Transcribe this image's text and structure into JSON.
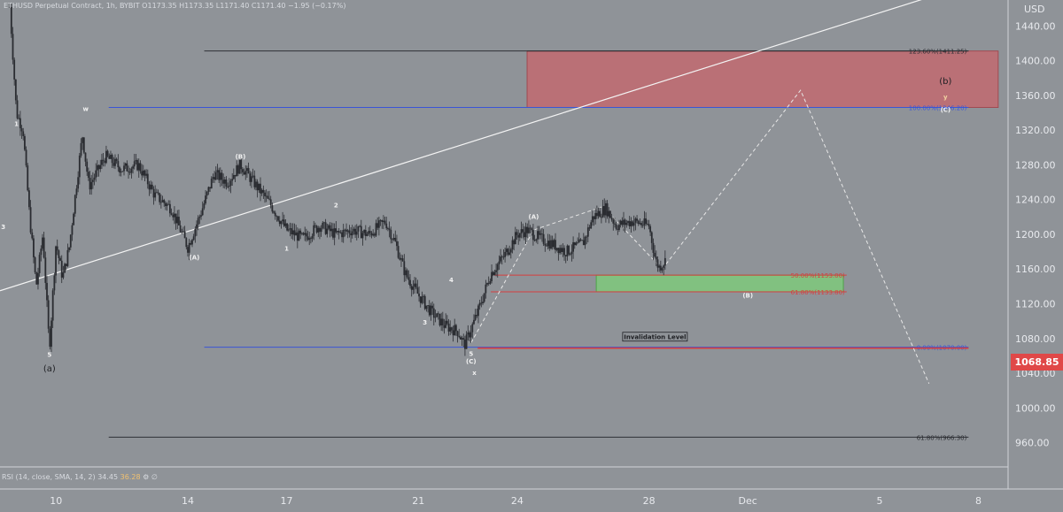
{
  "header": {
    "text": "ETHUSD Perpetual Contract, 1h, BYBIT  O1173.35  H1173.35  L1171.40  C1171.40  −1.95 (−0.17%)"
  },
  "rsi": {
    "label": "RSI (14, close, SMA, 14, 2)",
    "value1": "34.45",
    "value2": "36.28"
  },
  "price_badge": "1068.85",
  "colors": {
    "background": "#8f9398",
    "candle": "#2a2c31",
    "resistance_zone": "#c26a70",
    "support_zone": "#7fc97b",
    "badge": "#e04848",
    "blue_line": "#3a55d6",
    "red_line": "#d53f3f"
  },
  "chart_data": {
    "type": "line",
    "instrument": "ETHUSD Perpetual Contract, 1h, BYBIT",
    "y_axis_title": "USD",
    "ylim": [
      932,
      1470
    ],
    "y_ticks": [
      1440,
      1400,
      1360,
      1320,
      1280,
      1240,
      1200,
      1160,
      1120,
      1080,
      1040,
      1000,
      960
    ],
    "y_tick_labels": [
      "1440.00",
      "1400.00",
      "1360.00",
      "1320.00",
      "1280.00",
      "1240.00",
      "1200.00",
      "1160.00",
      "1120.00",
      "1080.00",
      "1040.00",
      "1000.00",
      "960.00"
    ],
    "x_ticks": [
      {
        "day": 10,
        "label": "10"
      },
      {
        "day": 14,
        "label": "14"
      },
      {
        "day": 17,
        "label": "17"
      },
      {
        "day": 21,
        "label": "21"
      },
      {
        "day": 24,
        "label": "24"
      },
      {
        "day": 28,
        "label": "28"
      },
      {
        "day": 31,
        "label": "Dec"
      },
      {
        "day": 35,
        "label": "5"
      },
      {
        "day": 38,
        "label": "8"
      }
    ],
    "xlim": [
      8.3,
      38.9
    ],
    "price_path": [
      [
        8.6,
        1462
      ],
      [
        8.8,
        1340
      ],
      [
        9.0,
        1320
      ],
      [
        9.2,
        1220
      ],
      [
        9.4,
        1140
      ],
      [
        9.6,
        1200
      ],
      [
        9.8,
        1068
      ],
      [
        10.0,
        1190
      ],
      [
        10.2,
        1150
      ],
      [
        10.4,
        1185
      ],
      [
        10.6,
        1250
      ],
      [
        10.8,
        1315
      ],
      [
        11.0,
        1255
      ],
      [
        11.5,
        1290
      ],
      [
        12.0,
        1275
      ],
      [
        12.5,
        1280
      ],
      [
        13.0,
        1245
      ],
      [
        13.5,
        1230
      ],
      [
        14.0,
        1185
      ],
      [
        14.4,
        1225
      ],
      [
        14.8,
        1270
      ],
      [
        15.2,
        1260
      ],
      [
        15.6,
        1280
      ],
      [
        16.0,
        1260
      ],
      [
        16.5,
        1235
      ],
      [
        17.0,
        1205
      ],
      [
        17.5,
        1195
      ],
      [
        18.0,
        1210
      ],
      [
        18.5,
        1200
      ],
      [
        19.0,
        1205
      ],
      [
        19.5,
        1200
      ],
      [
        20.0,
        1215
      ],
      [
        20.3,
        1190
      ],
      [
        20.6,
        1155
      ],
      [
        21.0,
        1130
      ],
      [
        21.4,
        1110
      ],
      [
        21.8,
        1095
      ],
      [
        22.2,
        1088
      ],
      [
        22.4,
        1072
      ],
      [
        22.8,
        1110
      ],
      [
        23.2,
        1155
      ],
      [
        23.6,
        1175
      ],
      [
        24.0,
        1200
      ],
      [
        24.3,
        1205
      ],
      [
        24.7,
        1195
      ],
      [
        25.0,
        1190
      ],
      [
        25.5,
        1180
      ],
      [
        26.0,
        1190
      ],
      [
        26.3,
        1220
      ],
      [
        26.7,
        1230
      ],
      [
        27.0,
        1210
      ],
      [
        27.5,
        1215
      ],
      [
        28.0,
        1210
      ],
      [
        28.1,
        1190
      ],
      [
        28.2,
        1170
      ],
      [
        28.3,
        1162
      ],
      [
        28.5,
        1170
      ]
    ],
    "projection": [
      [
        28.4,
        1160
      ],
      [
        32.6,
        1366
      ],
      [
        36.5,
        1028
      ]
    ],
    "projection_ab": [
      [
        22.6,
        1075
      ],
      [
        24.5,
        1205
      ],
      [
        26.6,
        1232
      ],
      [
        28.4,
        1160
      ]
    ],
    "levels": [
      {
        "name": "black-top",
        "price": 1411.25,
        "x_start": 14.5,
        "x_end": 37.7,
        "color": "#2f3136",
        "label": ""
      },
      {
        "name": "123.60",
        "price": 1411.25,
        "x_start": 24.3,
        "x_end": 37.7,
        "color": "#2f3136",
        "label": "123.60%(1411.25)"
      },
      {
        "name": "100.00",
        "price": 1346.2,
        "x_start": 11.6,
        "x_end": 37.7,
        "color": "#3a55d6",
        "label": "100.00%(1346.20)"
      },
      {
        "name": "50.00",
        "price": 1153.0,
        "x_start": 23.3,
        "x_end": 34.0,
        "color": "#d53f3f",
        "label": "50.00%(1153.00)"
      },
      {
        "name": "61.80",
        "price": 1133.8,
        "x_start": 23.2,
        "x_end": 34.0,
        "color": "#d53f3f",
        "label": "61.80%(1133.80)"
      },
      {
        "name": "0.00",
        "price": 1070.0,
        "x_start": 14.5,
        "x_end": 37.7,
        "color": "#3a55d6",
        "label": "0.00%(1070.00)"
      },
      {
        "name": "invalidation",
        "price": 1068.85,
        "x_start": 22.8,
        "x_end": 37.7,
        "color": "#d53f3f",
        "label": ""
      },
      {
        "name": "61.80-low",
        "price": 966.3,
        "x_start": 11.6,
        "x_end": 37.7,
        "color": "#2f3136",
        "label": "61.80%(966.30)"
      }
    ],
    "zones": [
      {
        "name": "resistance-zone",
        "x_start": 24.3,
        "x_end": 38.6,
        "y_top": 1411.25,
        "y_bottom": 1346.2,
        "color": "#c26a70"
      },
      {
        "name": "support-zone",
        "x_start": 26.4,
        "x_end": 33.9,
        "y_top": 1153.0,
        "y_bottom": 1133.8,
        "color": "#7fc97b"
      }
    ],
    "trendline": [
      [
        8.3,
        1135
      ],
      [
        36.9,
        1478
      ]
    ],
    "annotations": [
      {
        "text": "w",
        "x": 10.9,
        "y": 1342
      },
      {
        "text": "1",
        "x": 8.8,
        "y": 1325
      },
      {
        "text": "3",
        "x": 8.4,
        "y": 1206
      },
      {
        "text": "5",
        "x": 9.8,
        "y": 1059
      },
      {
        "text": "(a)",
        "x": 9.8,
        "y": 1042
      },
      {
        "text": "(B)",
        "x": 15.6,
        "y": 1287
      },
      {
        "text": "(A)",
        "x": 14.2,
        "y": 1171
      },
      {
        "text": "2",
        "x": 18.5,
        "y": 1231
      },
      {
        "text": "1",
        "x": 17.0,
        "y": 1181
      },
      {
        "text": "4",
        "x": 22.0,
        "y": 1145
      },
      {
        "text": "3",
        "x": 21.2,
        "y": 1096
      },
      {
        "text": "5",
        "x": 22.6,
        "y": 1060
      },
      {
        "text": "(C)",
        "x": 22.6,
        "y": 1051
      },
      {
        "text": "x",
        "x": 22.7,
        "y": 1038
      },
      {
        "text": "(A)",
        "x": 24.5,
        "y": 1218
      },
      {
        "text": "(B)",
        "x": 31.0,
        "y": 1127
      },
      {
        "text": "(b)",
        "x": 37.0,
        "y": 1373
      },
      {
        "text": "y",
        "x": 37.0,
        "y": 1356
      },
      {
        "text": "(C)",
        "x": 37.0,
        "y": 1341
      }
    ],
    "invalidation_label": "Invalidation Level",
    "invalidation_label_pos": {
      "x": 27.2,
      "y": 1080
    }
  }
}
